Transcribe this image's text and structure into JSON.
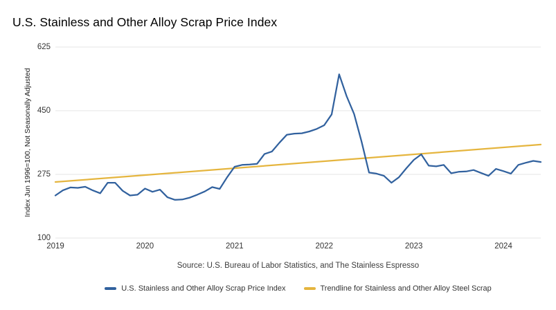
{
  "title": "U.S. Stainless and Other Alloy Scrap Price Index",
  "source_note": "Source: U.S. Bureau of Labor Statistics, and The Stainless Espresso",
  "colors": {
    "series_blue": "#31619e",
    "trendline_gold": "#e5b53e",
    "gridline": "#e4e4e4",
    "tick_text": "#333333",
    "title_text": "#000000"
  },
  "legend": [
    {
      "label": "U.S. Stainless and Other Alloy Scrap Price Index",
      "color": "#31619e"
    },
    {
      "label": "Trendline for Stainless and Other Alloy Steel Scrap",
      "color": "#e5b53e"
    }
  ],
  "chart_data": {
    "type": "line",
    "title": "U.S. Stainless and Other Alloy Scrap Price Index",
    "xlabel": "",
    "ylabel": "Index Jun 1996=100, Not Seasonally Adjusted",
    "ylim": [
      100,
      625
    ],
    "yticks": [
      100,
      275,
      450,
      625
    ],
    "grid": "horizontal",
    "legend_position": "bottom",
    "x_start": "2019-01",
    "x_end": "2024-06",
    "x_frequency": "monthly",
    "xticks": [
      {
        "label": "2019",
        "month_index": 0
      },
      {
        "label": "2020",
        "month_index": 12
      },
      {
        "label": "2021",
        "month_index": 24
      },
      {
        "label": "2022",
        "month_index": 36
      },
      {
        "label": "2023",
        "month_index": 48
      },
      {
        "label": "2024",
        "month_index": 60
      }
    ],
    "series": [
      {
        "name": "U.S. Stainless and Other Alloy Scrap Price Index",
        "color": "#31619e",
        "values": [
          217,
          231,
          239,
          238,
          241,
          231,
          223,
          252,
          252,
          230,
          217,
          219,
          236,
          227,
          233,
          212,
          205,
          206,
          211,
          219,
          228,
          240,
          235,
          267,
          296,
          301,
          302,
          304,
          331,
          338,
          362,
          384,
          387,
          388,
          393,
          400,
          410,
          440,
          550,
          490,
          441,
          365,
          280,
          277,
          271,
          252,
          267,
          292,
          315,
          330,
          299,
          297,
          301,
          278,
          282,
          283,
          287,
          279,
          271,
          290,
          284,
          277,
          301,
          307,
          312,
          309
        ]
      },
      {
        "name": "Trendline for Stainless and Other Alloy Steel Scrap",
        "color": "#e5b53e",
        "type": "trendline",
        "endpoint_values": [
          254,
          357
        ]
      }
    ]
  }
}
